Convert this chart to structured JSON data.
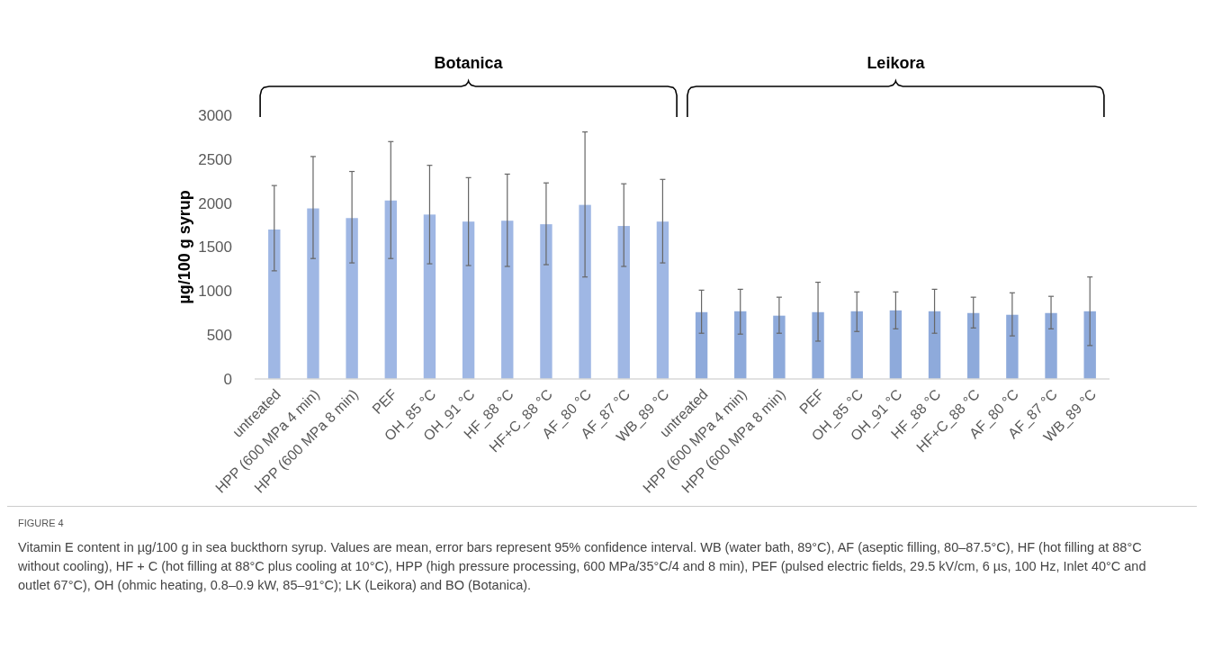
{
  "chart_data": {
    "type": "bar",
    "ylabel": "µg/100 g syrup",
    "categories": [
      "untreated",
      "HPP (600 MPa 4 min)",
      "HPP (600 MPa 8 min)",
      "PEF",
      "OH_85 °C",
      "OH_91 °C",
      "HF_88 °C",
      "HF+C_88 °C",
      "AF_80 °C",
      "AF_87 °C",
      "WB_89 °C",
      "untreated",
      "HPP (600 MPa 4 min)",
      "HPP (600 MPa 8 min)",
      "PEF",
      "OH_85 °C",
      "OH_91 °C",
      "HF_88 °C",
      "HF+C_88 °C",
      "AF_80 °C",
      "AF_87 °C",
      "WB_89 °C"
    ],
    "values": [
      1700,
      1940,
      1830,
      2030,
      1870,
      1790,
      1800,
      1760,
      1980,
      1740,
      1790,
      760,
      770,
      720,
      760,
      770,
      780,
      770,
      750,
      730,
      750,
      770
    ],
    "errors": [
      [
        1230,
        2200
      ],
      [
        1370,
        2530
      ],
      [
        1320,
        2360
      ],
      [
        1370,
        2700
      ],
      [
        1310,
        2430
      ],
      [
        1290,
        2290
      ],
      [
        1280,
        2330
      ],
      [
        1300,
        2230
      ],
      [
        1160,
        2810
      ],
      [
        1280,
        2220
      ],
      [
        1320,
        2270
      ],
      [
        520,
        1010
      ],
      [
        510,
        1020
      ],
      [
        520,
        930
      ],
      [
        430,
        1100
      ],
      [
        540,
        990
      ],
      [
        570,
        990
      ],
      [
        520,
        1020
      ],
      [
        580,
        930
      ],
      [
        490,
        980
      ],
      [
        570,
        940
      ],
      [
        380,
        1160
      ]
    ],
    "colors": [
      "#9fb7e4",
      "#9fb7e4",
      "#9fb7e4",
      "#9fb7e4",
      "#9fb7e4",
      "#9fb7e4",
      "#9fb7e4",
      "#9fb7e4",
      "#9fb7e4",
      "#9fb7e4",
      "#9fb7e4",
      "#8eaadb",
      "#8eaadb",
      "#8eaadb",
      "#8eaadb",
      "#8eaadb",
      "#8eaadb",
      "#8eaadb",
      "#8eaadb",
      "#8eaadb",
      "#8eaadb",
      "#8eaadb"
    ],
    "ylim": [
      0,
      3000
    ],
    "yticks": [
      0,
      500,
      1000,
      1500,
      2000,
      2500,
      3000
    ],
    "grid": false,
    "annotations": [
      "Botanica",
      "Leikora",
      "FIGURE 4",
      "Vitamin E content in µg/100 g in sea buckthorn syrup. Values are mean, error bars represent 95% confidence interval. WB (water bath, 89°C), AF (aseptic filling, 80–87.5°C), HF (hot filling at 88°C without cooling), HF + C (hot filling at 88°C plus cooling at 10°C), HPP (high pressure processing, 600 MPa/35°C/4 and 8 min), PEF (pulsed electric fields, 29.5 kV/cm, 6 µs, 100 Hz, Inlet 40°C and outlet 67°C), OH (ohmic heating, 0.8–0.9 kW, 85–91°C); LK (Leikora) and BO (Botanica)."
    ]
  }
}
